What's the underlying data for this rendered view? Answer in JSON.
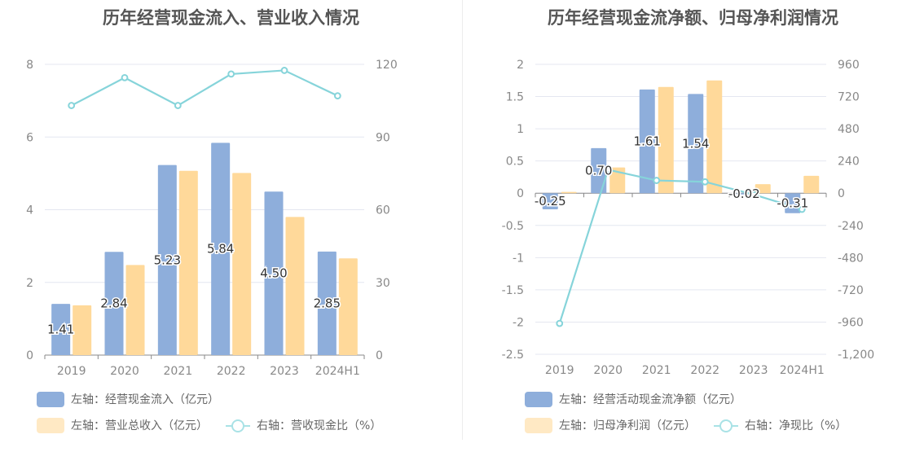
{
  "chart_data": [
    {
      "type": "bar",
      "title": "历年经营现金流入、营业收入情况",
      "categories": [
        "2019",
        "2020",
        "2021",
        "2022",
        "2023",
        "2024H1"
      ],
      "series": [
        {
          "name": "左轴：经营现金流入（亿元）",
          "axis": "left",
          "kind": "bar",
          "color": "#8eaedb",
          "values": [
            1.41,
            2.84,
            5.23,
            5.84,
            4.5,
            2.85
          ],
          "labels": [
            "1.41",
            "2.84",
            "5.23",
            "5.84",
            "4.50",
            "2.85"
          ]
        },
        {
          "name": "左轴：营业总收入（亿元）",
          "axis": "left",
          "kind": "bar",
          "color": "#ffd99a",
          "values": [
            1.37,
            2.48,
            5.07,
            5.01,
            3.8,
            2.66
          ]
        },
        {
          "name": "右轴：营收现金比（%）",
          "axis": "right",
          "kind": "line",
          "color": "#86d4da",
          "values": [
            103,
            114.5,
            103,
            116,
            117.5,
            107
          ]
        }
      ],
      "left_axis": {
        "min": 0,
        "max": 8,
        "ticks": [
          "0",
          "2",
          "4",
          "6",
          "8"
        ]
      },
      "right_axis": {
        "min": 0,
        "max": 120,
        "ticks": [
          "0",
          "30",
          "60",
          "90",
          "120"
        ]
      },
      "grid": true,
      "legend_position": "bottom-left"
    },
    {
      "type": "bar",
      "title": "历年经营现金流净额、归母净利润情况",
      "categories": [
        "2019",
        "2020",
        "2021",
        "2022",
        "2023",
        "2024H1"
      ],
      "series": [
        {
          "name": "左轴：经营活动现金流净额（亿元）",
          "axis": "left",
          "kind": "bar",
          "color": "#8eaedb",
          "values": [
            -0.25,
            0.7,
            1.61,
            1.54,
            -0.02,
            -0.31
          ],
          "labels": [
            "-0.25",
            "0.70",
            "1.61",
            "1.54",
            "-0.02",
            "-0.31"
          ]
        },
        {
          "name": "左轴：归母净利润（亿元）",
          "axis": "left",
          "kind": "bar",
          "color": "#ffd99a",
          "values": [
            0.02,
            0.4,
            1.65,
            1.75,
            0.14,
            0.27
          ]
        },
        {
          "name": "右轴：净现比（%）",
          "axis": "right",
          "kind": "line",
          "color": "#86d4da",
          "values": [
            -970,
            175,
            95,
            85,
            -10,
            -120
          ]
        }
      ],
      "left_axis": {
        "min": -2.5,
        "max": 2,
        "ticks": [
          "-2.5",
          "-2",
          "-1.5",
          "-1",
          "-0.5",
          "0",
          "0.5",
          "1",
          "1.5",
          "2"
        ]
      },
      "right_axis": {
        "min": -1200,
        "max": 960,
        "ticks": [
          "-1,200",
          "-960",
          "-720",
          "-480",
          "-240",
          "0",
          "240",
          "480",
          "720",
          "960"
        ]
      },
      "grid": true,
      "legend_position": "bottom-left"
    }
  ]
}
